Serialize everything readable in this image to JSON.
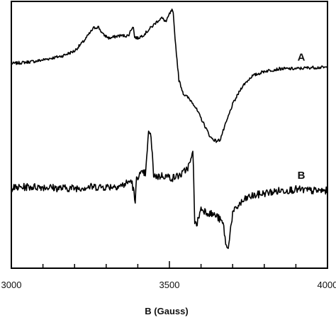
{
  "chart_data": {
    "type": "line",
    "title": "",
    "xlabel": "B (Gauss)",
    "ylabel": "",
    "xlim": [
      3000,
      4000
    ],
    "x_ticks": [
      3000,
      3500,
      4000
    ],
    "x_tick_labels": [
      "3000",
      "3500",
      "4000"
    ],
    "minor_ticks": [
      3100,
      3200,
      3300,
      3400,
      3600,
      3700,
      3800,
      3900
    ],
    "ylim": [
      -1.05,
      1.05
    ],
    "grid": false,
    "legend": "none",
    "series": [
      {
        "name": "A",
        "x": [
          3000,
          3040,
          3080,
          3120,
          3160,
          3200,
          3230,
          3260,
          3275,
          3290,
          3310,
          3340,
          3370,
          3385,
          3390,
          3400,
          3420,
          3440,
          3460,
          3475,
          3490,
          3500,
          3508,
          3512,
          3520,
          3530,
          3545,
          3560,
          3575,
          3590,
          3610,
          3630,
          3648,
          3660,
          3680,
          3700,
          3730,
          3760,
          3800,
          3850,
          3900,
          3950,
          4000
        ],
        "y": [
          0.56,
          0.57,
          0.58,
          0.6,
          0.62,
          0.66,
          0.74,
          0.84,
          0.85,
          0.79,
          0.76,
          0.78,
          0.78,
          0.86,
          0.77,
          0.76,
          0.79,
          0.84,
          0.89,
          0.92,
          0.89,
          0.95,
          0.98,
          0.95,
          0.7,
          0.43,
          0.32,
          0.29,
          0.25,
          0.18,
          0.08,
          -0.02,
          -0.05,
          -0.04,
          0.1,
          0.24,
          0.38,
          0.46,
          0.5,
          0.52,
          0.52,
          0.53,
          0.53
        ]
      },
      {
        "name": "B",
        "x": [
          3000,
          3050,
          3100,
          3150,
          3200,
          3250,
          3300,
          3350,
          3380,
          3388,
          3392,
          3396,
          3410,
          3425,
          3435,
          3442,
          3450,
          3460,
          3480,
          3510,
          3540,
          3560,
          3570,
          3575,
          3580,
          3585,
          3600,
          3620,
          3650,
          3670,
          3680,
          3685,
          3690,
          3700,
          3720,
          3750,
          3800,
          3850,
          3900,
          3950,
          4000
        ],
        "y": [
          -0.42,
          -0.41,
          -0.41,
          -0.42,
          -0.42,
          -0.41,
          -0.41,
          -0.4,
          -0.36,
          -0.46,
          -0.55,
          -0.33,
          -0.31,
          -0.3,
          0.05,
          -0.03,
          -0.31,
          -0.33,
          -0.32,
          -0.34,
          -0.31,
          -0.25,
          -0.19,
          -0.13,
          -0.68,
          -0.72,
          -0.58,
          -0.61,
          -0.64,
          -0.7,
          -0.88,
          -0.91,
          -0.8,
          -0.62,
          -0.55,
          -0.49,
          -0.46,
          -0.44,
          -0.43,
          -0.44,
          -0.44
        ]
      }
    ]
  }
}
